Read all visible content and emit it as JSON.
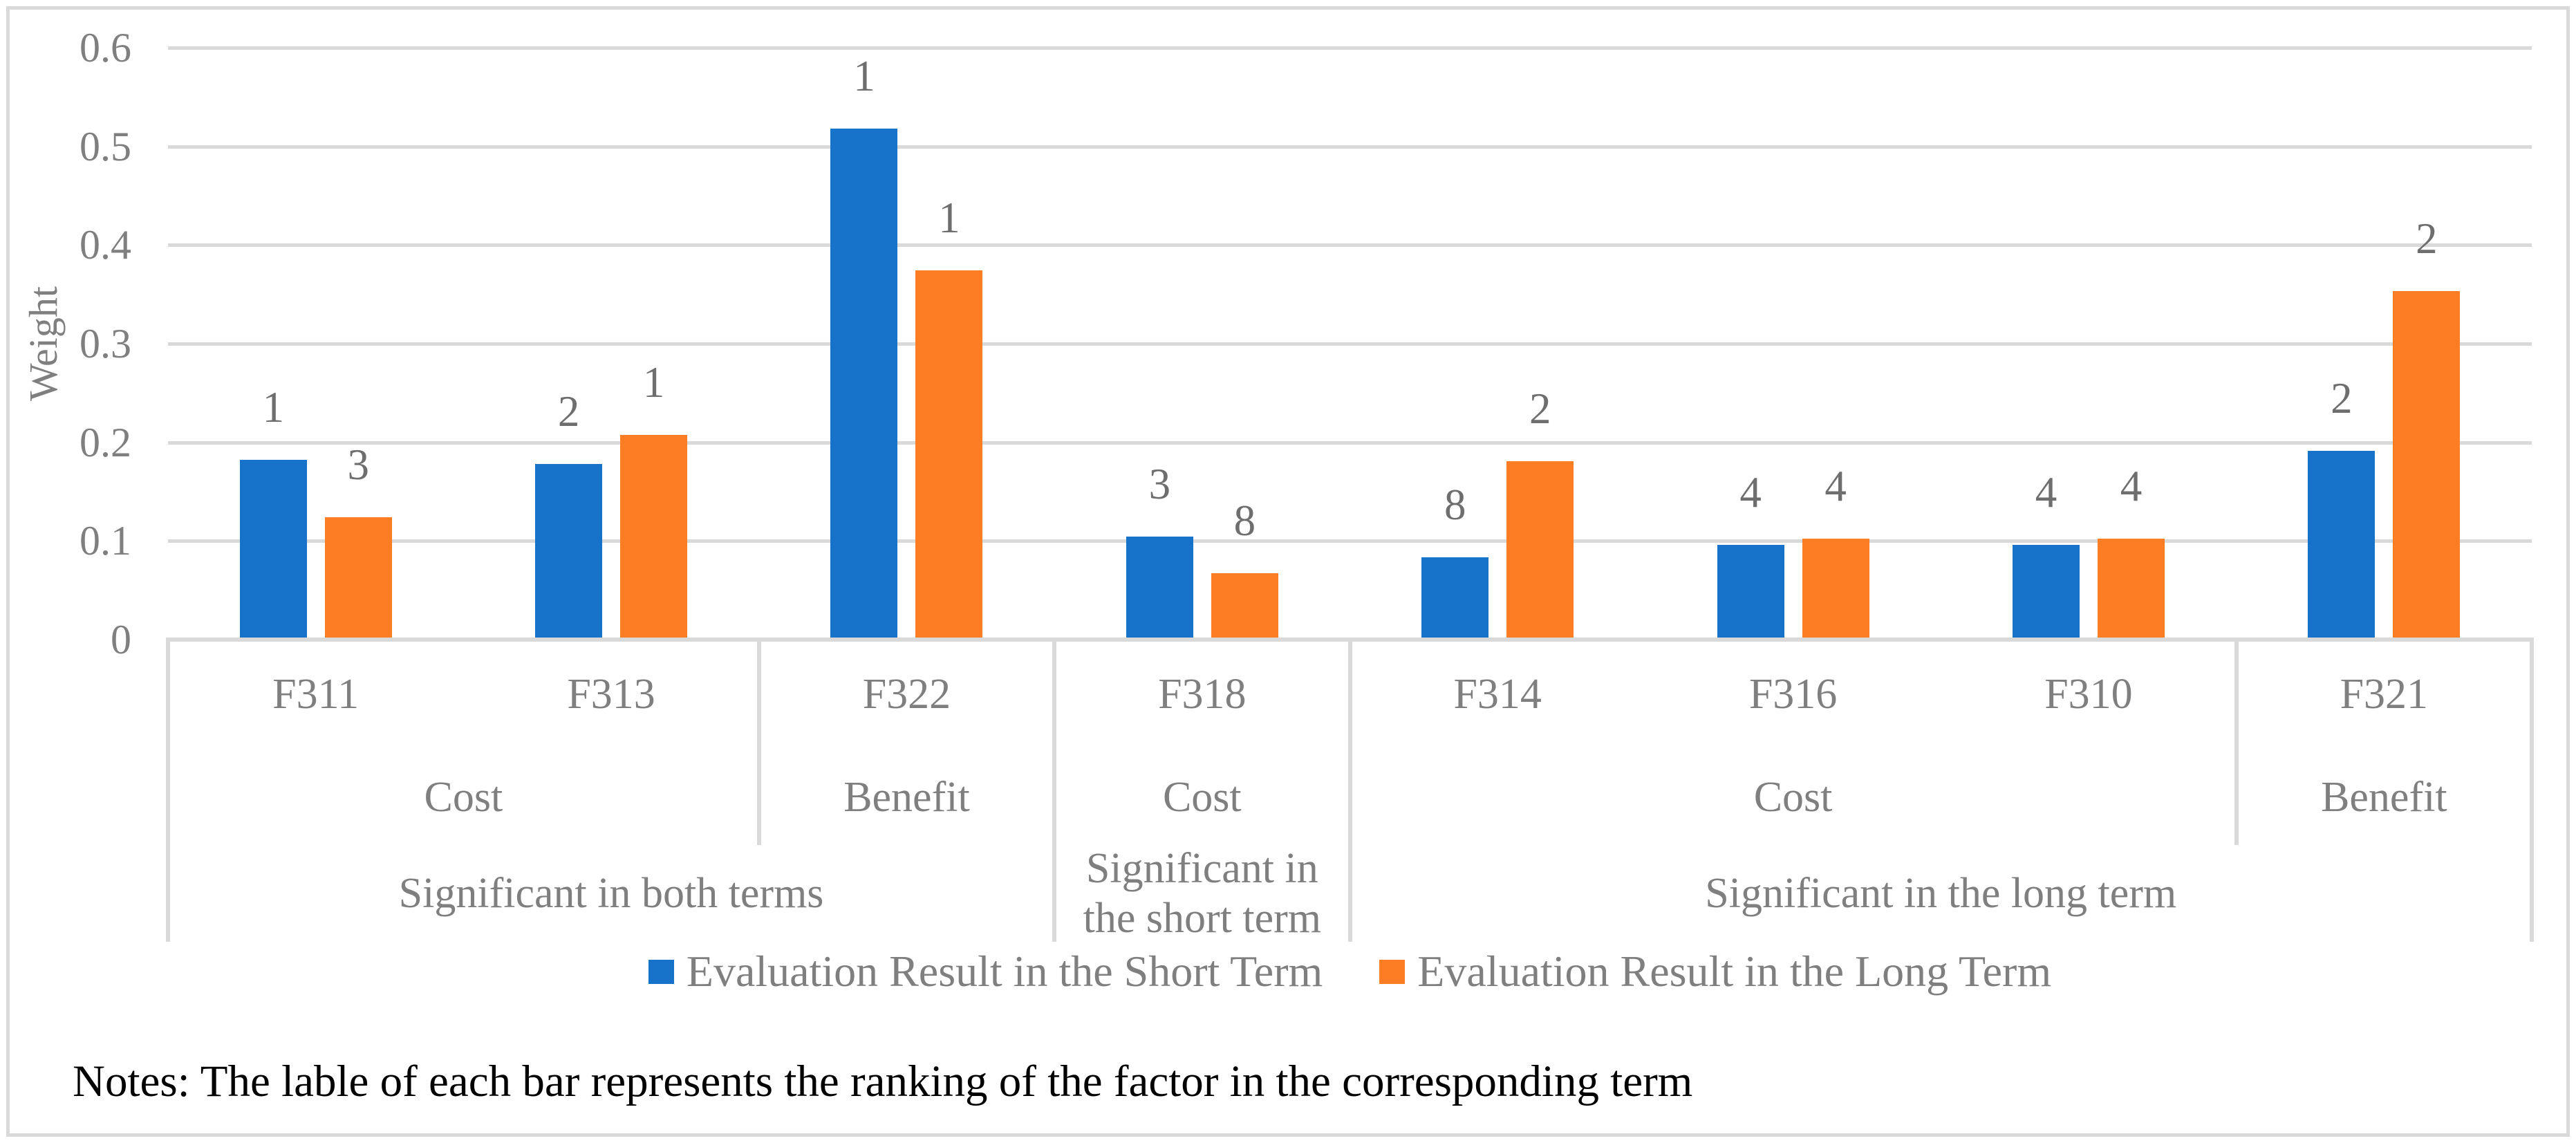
{
  "figure": {
    "background": "#ffffff",
    "border_color": "#d9d9d9"
  },
  "chart_data": {
    "type": "bar",
    "title": "",
    "xlabel": "",
    "ylabel": "Weight",
    "ylim": [
      0,
      0.6
    ],
    "ytick_step": 0.1,
    "yticks": [
      "0",
      "0.1",
      "0.2",
      "0.3",
      "0.4",
      "0.5",
      "0.6"
    ],
    "grid": true,
    "legend_position": "bottom",
    "categories": [
      "F311",
      "F313",
      "F322",
      "F318",
      "F314",
      "F316",
      "F310",
      "F321"
    ],
    "series": [
      {
        "name": "Evaluation Result in the Short Term",
        "color": "#1772ca",
        "values": [
          0.18,
          0.176,
          0.516,
          0.102,
          0.081,
          0.094,
          0.094,
          0.189
        ],
        "bar_labels": [
          "1",
          "2",
          "1",
          "3",
          "8",
          "4",
          "4",
          "2"
        ]
      },
      {
        "name": "Evaluation Result in the Long Term",
        "color": "#fc7d23",
        "values": [
          0.122,
          0.205,
          0.372,
          0.065,
          0.179,
          0.1,
          0.1,
          0.351
        ],
        "bar_labels": [
          "3",
          "1",
          "1",
          "8",
          "2",
          "4",
          "4",
          "2"
        ]
      }
    ],
    "axis_groups": {
      "level2": [
        {
          "label": "Cost",
          "from": 0,
          "to": 2
        },
        {
          "label": "Benefit",
          "from": 2,
          "to": 3
        },
        {
          "label": "Cost",
          "from": 3,
          "to": 4
        },
        {
          "label": "Cost",
          "from": 4,
          "to": 7
        },
        {
          "label": "Benefit",
          "from": 7,
          "to": 8
        }
      ],
      "level3": [
        {
          "label": "Significant in both terms",
          "lines": [
            "Significant in both terms"
          ],
          "from": 0,
          "to": 3
        },
        {
          "label": "Significant in the short term",
          "lines": [
            "Significant in",
            "the short term"
          ],
          "from": 3,
          "to": 4
        },
        {
          "label": "Significant in the long term",
          "lines": [
            "Significant in the long term"
          ],
          "from": 4,
          "to": 8
        }
      ]
    }
  },
  "colors": {
    "grid": "#d9d9d9",
    "axis_text": "#7f7f7f",
    "bar_label_text": "#6e6e6e",
    "notes_text": "#000000"
  },
  "notes": "Notes: The lable of each bar represents the ranking of the factor in the corresponding term"
}
